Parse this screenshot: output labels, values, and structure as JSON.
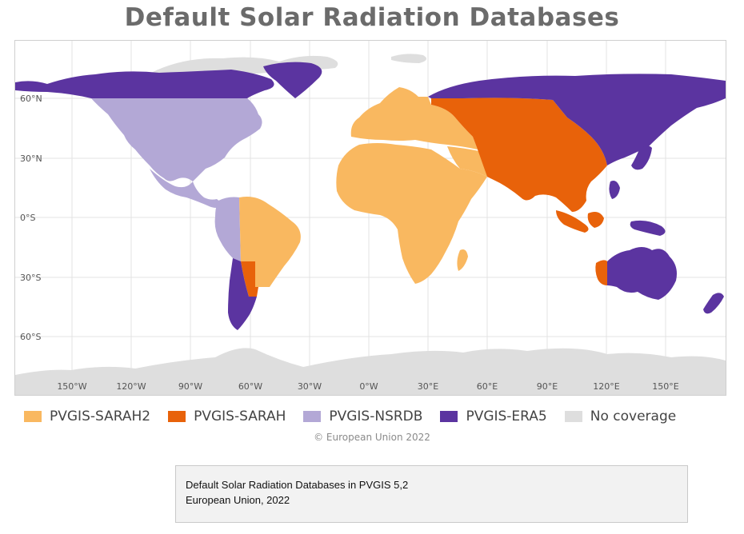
{
  "title": "Default Solar Radiation Databases",
  "colors": {
    "sarah2": "#f9b860",
    "sarah": "#e8620a",
    "nsrdb": "#b3a8d6",
    "era5": "#5b34a0",
    "no_coverage": "#dedede",
    "ocean": "#ffffff"
  },
  "lat_labels": [
    "60°N",
    "30°N",
    "0°S",
    "30°S",
    "60°S"
  ],
  "lon_labels": [
    "150°W",
    "120°W",
    "90°W",
    "60°W",
    "30°W",
    "0°W",
    "30°E",
    "60°E",
    "90°E",
    "120°E",
    "150°E"
  ],
  "legend": [
    {
      "label": "PVGIS-SARAH2",
      "color": "#f9b860"
    },
    {
      "label": "PVGIS-SARAH",
      "color": "#e8620a"
    },
    {
      "label": "PVGIS-NSRDB",
      "color": "#b3a8d6"
    },
    {
      "label": "PVGIS-ERA5",
      "color": "#5b34a0"
    },
    {
      "label": "No coverage",
      "color": "#dedede"
    }
  ],
  "copyright": "© European Union 2022",
  "caption": {
    "line1": "Default Solar Radiation Databases in PVGIS 5,2",
    "line2": "European Union, 2022"
  }
}
